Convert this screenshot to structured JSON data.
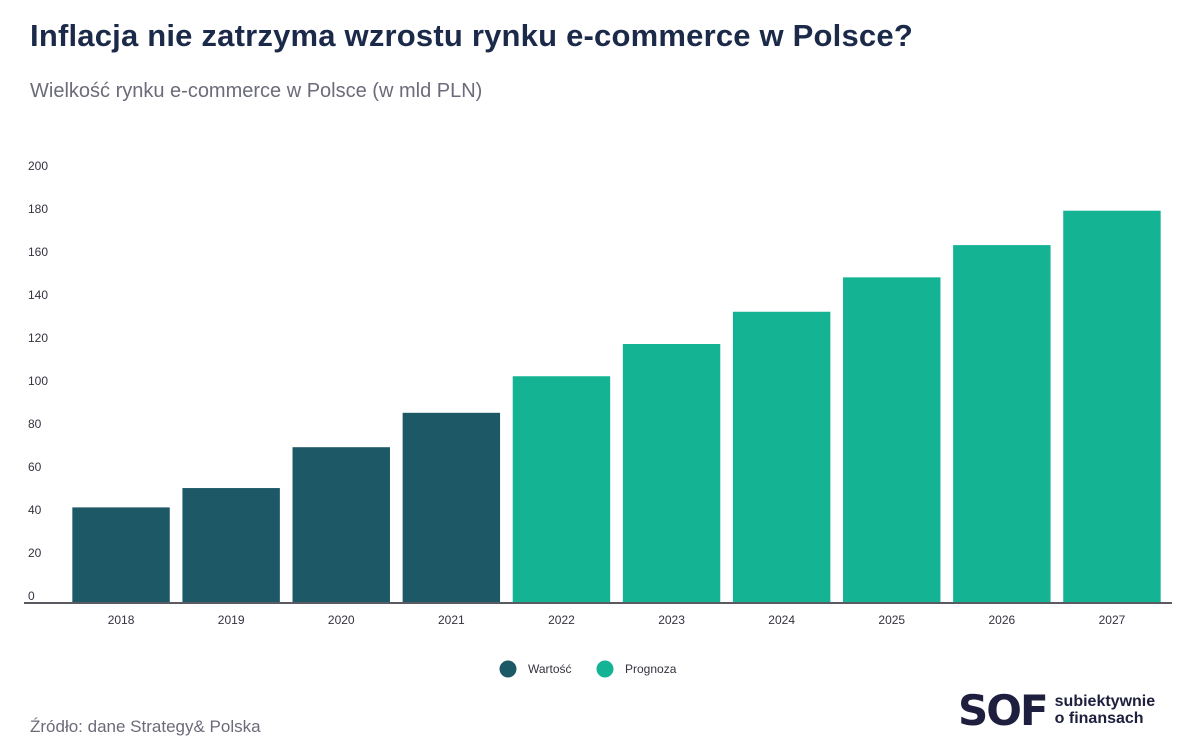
{
  "chart_data": {
    "type": "bar",
    "title": "Inflacja nie zatrzyma wzrostu rynku e-commerce w Polsce?",
    "subtitle": "Wielkość rynku e-commerce w Polsce (w mld PLN)",
    "categories": [
      "2018",
      "2019",
      "2020",
      "2021",
      "2022",
      "2023",
      "2024",
      "2025",
      "2026",
      "2027"
    ],
    "values": [
      44,
      53,
      72,
      88,
      105,
      120,
      135,
      151,
      166,
      182
    ],
    "value_kind": [
      "Wartość",
      "Wartość",
      "Wartość",
      "Wartość",
      "Prognoza",
      "Prognoza",
      "Prognoza",
      "Prognoza",
      "Prognoza",
      "Prognoza"
    ],
    "ylim": [
      0,
      200
    ],
    "yticks": [
      0,
      20,
      40,
      60,
      80,
      100,
      120,
      140,
      160,
      180,
      200
    ],
    "xlabel": "",
    "ylabel": "",
    "grid": false,
    "legend_position": "bottom-center",
    "legend": [
      {
        "name": "Wartość",
        "color": "#1d5866"
      },
      {
        "name": "Prognoza",
        "color": "#14b394"
      }
    ]
  },
  "source": "Źródło: dane Strategy& Polska",
  "logo": {
    "mark": "SOF",
    "line1": "subiektywnie",
    "line2": "o finansach",
    "color_dark": "#1e1f3e",
    "color_accent": "#c2185b"
  }
}
